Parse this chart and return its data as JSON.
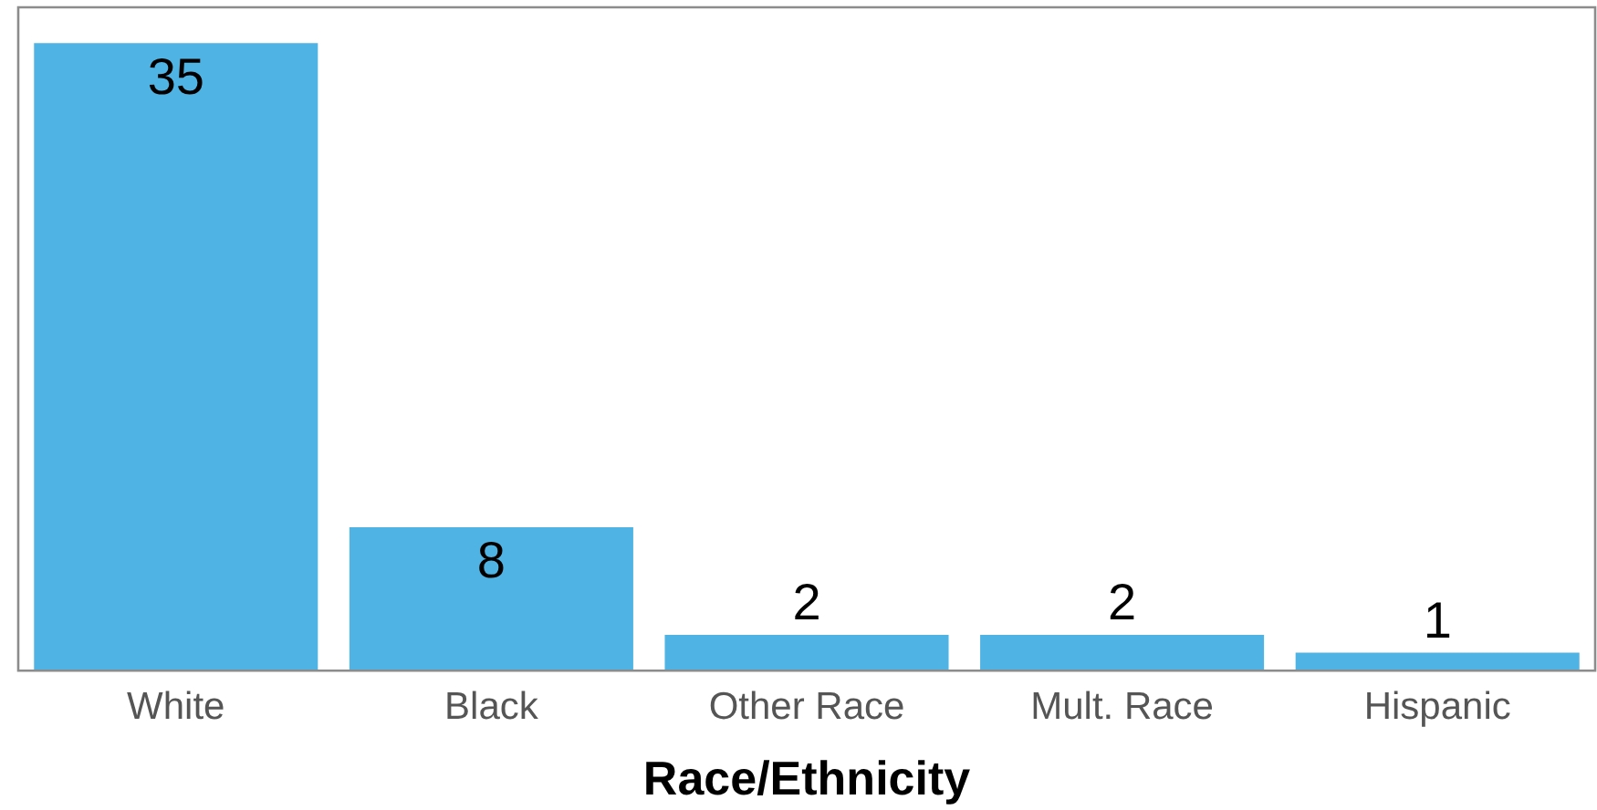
{
  "chart_data": {
    "type": "bar",
    "xlabel": "Race/Ethnicity",
    "categories": [
      "White",
      "Black",
      "Other Race",
      "Mult. Race",
      "Hispanic"
    ],
    "values": [
      35,
      8,
      2,
      2,
      1
    ],
    "color": "#4fb3e3",
    "ylim": [
      0,
      37
    ],
    "data_labels": true,
    "grid": false,
    "legend": false
  }
}
